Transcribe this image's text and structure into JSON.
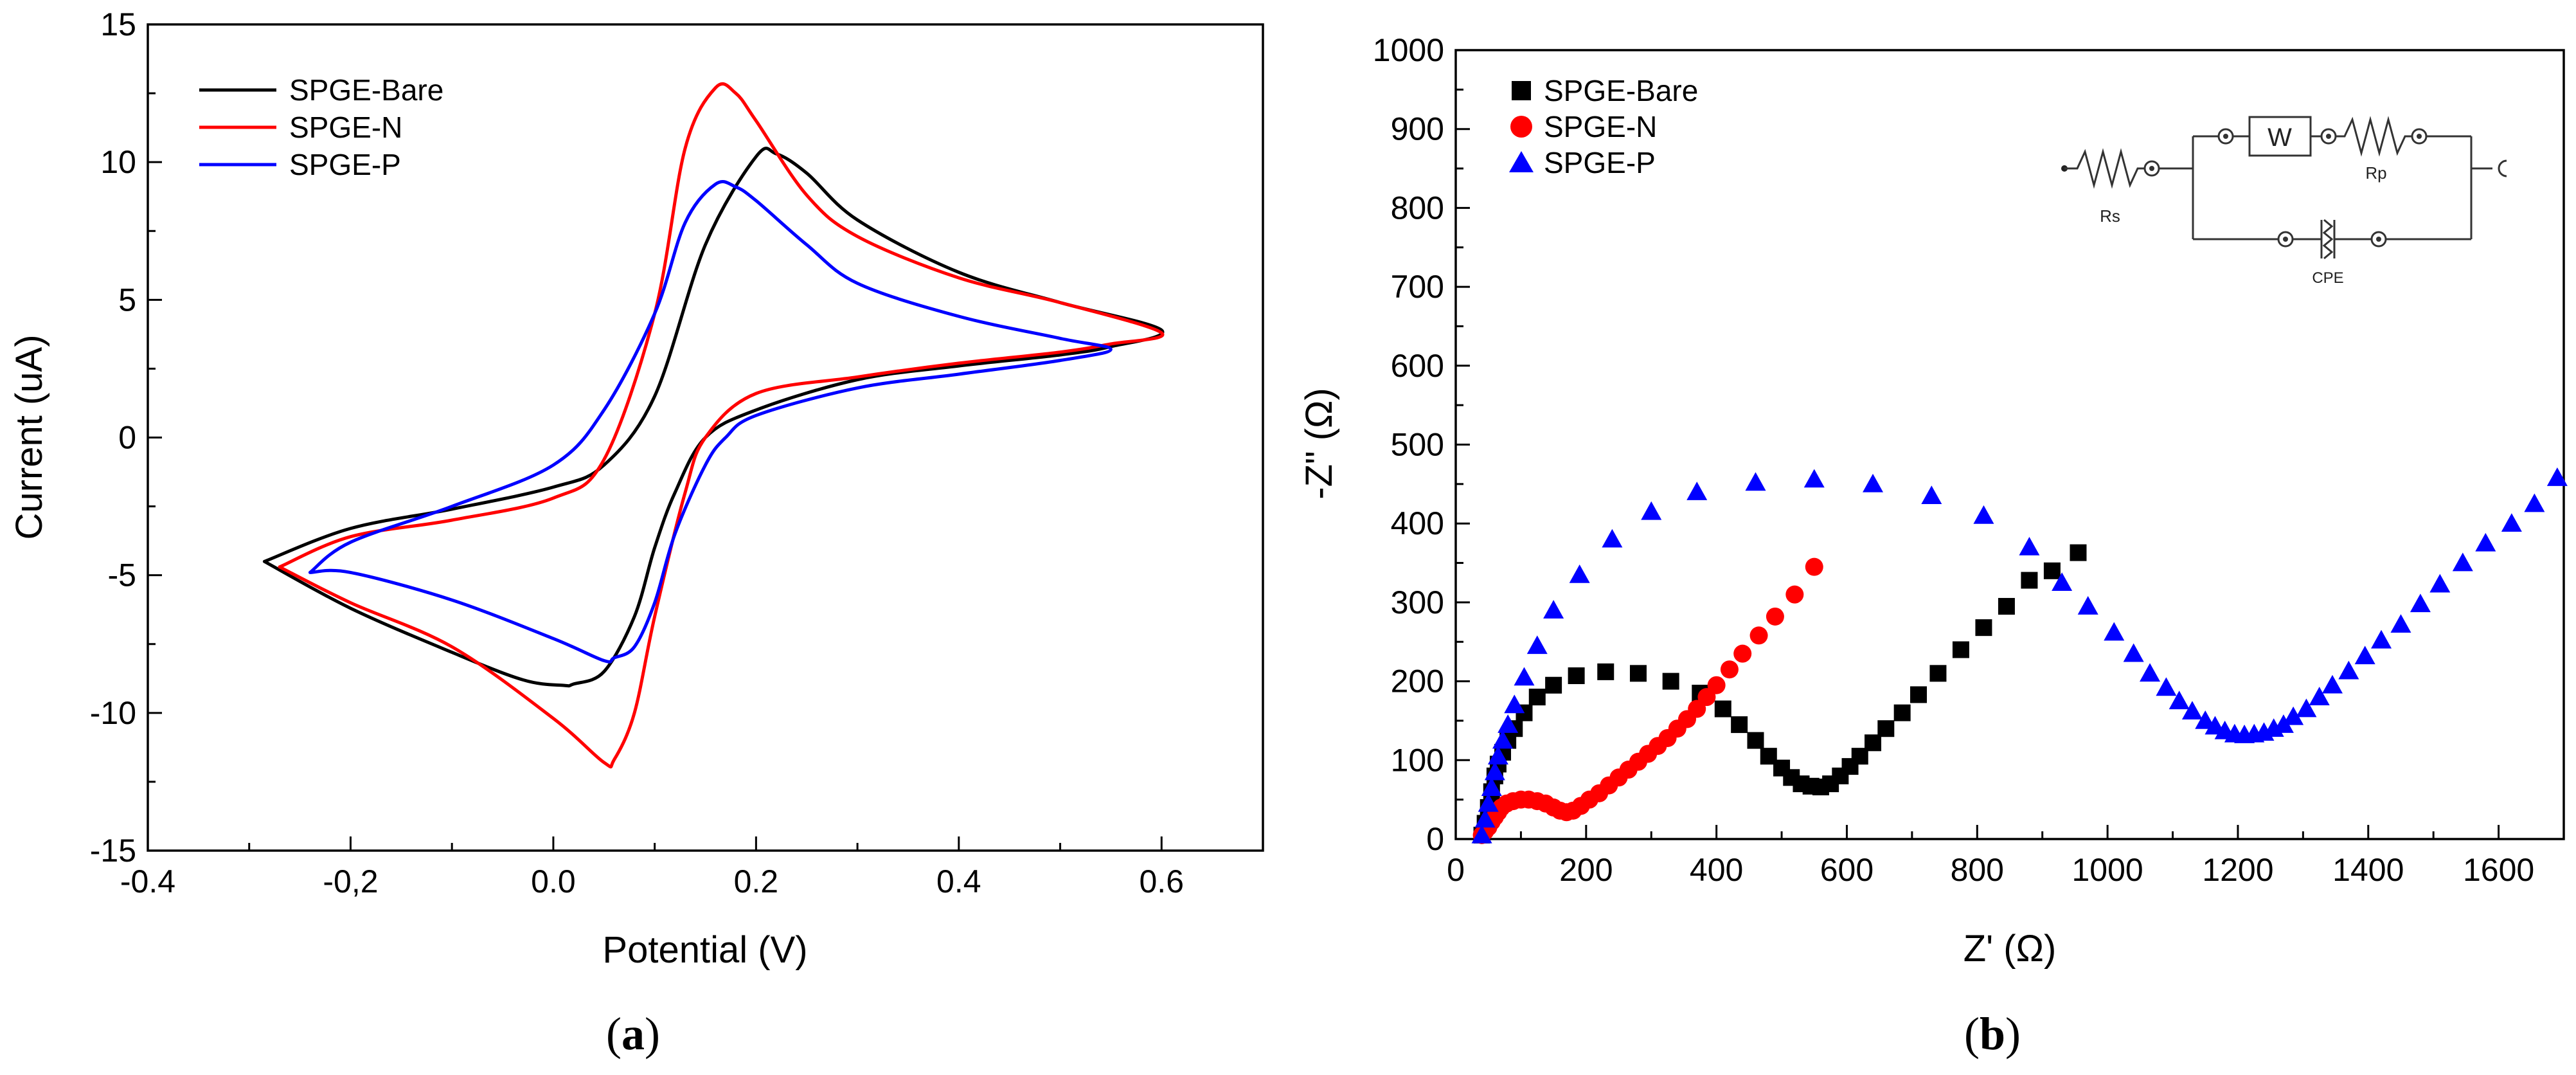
{
  "panels": {
    "a": {
      "label_letter": "a"
    },
    "b": {
      "label_letter": "b"
    }
  },
  "circuit": {
    "labels": {
      "rs": "Rs",
      "w": "W",
      "rp": "Rp",
      "cpe": "CPE"
    }
  },
  "chart_data": [
    {
      "id": "cv",
      "type": "line",
      "title": "",
      "xlabel": "Potential (V)",
      "ylabel": "Current (uA)",
      "xlim": [
        -0.4,
        0.7
      ],
      "ylim": [
        -15,
        15
      ],
      "xticks": [
        -0.4,
        -0.2,
        0.0,
        0.2,
        0.4,
        0.6
      ],
      "xtick_labels": [
        "-0.4",
        "-0,2",
        "0.0",
        "0.2",
        "0.4",
        "0.6"
      ],
      "yticks": [
        -15,
        -10,
        -5,
        0,
        5,
        10,
        15
      ],
      "ytick_labels": [
        "-15",
        "-10",
        "-5",
        "0",
        "5",
        "10",
        "15"
      ],
      "legend_position": "top-left",
      "grid": false,
      "series": [
        {
          "name": "SPGE-Bare",
          "color": "#000000",
          "x": [
            -0.285,
            -0.2,
            -0.1,
            0.0,
            0.05,
            0.1,
            0.15,
            0.2,
            0.22,
            0.25,
            0.3,
            0.4,
            0.5,
            0.6,
            0.55,
            0.5,
            0.4,
            0.3,
            0.2,
            0.15,
            0.12,
            0.1,
            0.08,
            0.05,
            0.02,
            0.01,
            -0.03,
            -0.1,
            -0.2,
            -0.285
          ],
          "y": [
            -4.5,
            -3.3,
            -2.6,
            -1.8,
            -1.0,
            1.5,
            7.0,
            10.2,
            10.3,
            9.6,
            7.9,
            6.0,
            4.9,
            3.9,
            3.3,
            3.0,
            2.6,
            2.1,
            1.0,
            0.0,
            -2.0,
            -4.0,
            -6.5,
            -8.5,
            -8.95,
            -9.0,
            -8.8,
            -7.8,
            -6.2,
            -4.5
          ]
        },
        {
          "name": "SPGE-N",
          "color": "#ff0000",
          "x": [
            -0.27,
            -0.2,
            -0.1,
            0.0,
            0.05,
            0.1,
            0.13,
            0.16,
            0.18,
            0.2,
            0.25,
            0.3,
            0.4,
            0.5,
            0.6,
            0.55,
            0.5,
            0.4,
            0.3,
            0.2,
            0.15,
            0.13,
            0.1,
            0.08,
            0.06,
            0.05,
            0.0,
            -0.1,
            -0.2,
            -0.27
          ],
          "y": [
            -4.7,
            -3.6,
            -3.0,
            -2.2,
            -0.8,
            4.5,
            10.5,
            12.7,
            12.5,
            11.5,
            8.8,
            7.3,
            5.8,
            4.9,
            3.8,
            3.4,
            3.1,
            2.7,
            2.2,
            1.6,
            0.0,
            -2.0,
            -6.5,
            -10.0,
            -11.7,
            -11.8,
            -10.2,
            -7.6,
            -6.0,
            -4.7
          ]
        },
        {
          "name": "SPGE-P",
          "color": "#0000ff",
          "x": [
            -0.24,
            -0.2,
            -0.1,
            0.0,
            0.05,
            0.1,
            0.13,
            0.16,
            0.18,
            0.2,
            0.25,
            0.3,
            0.4,
            0.5,
            0.55,
            0.5,
            0.4,
            0.3,
            0.2,
            0.17,
            0.15,
            0.12,
            0.1,
            0.08,
            0.06,
            0.05,
            0.0,
            -0.1,
            -0.2,
            -0.24
          ],
          "y": [
            -4.9,
            -3.8,
            -2.5,
            -1.0,
            1.0,
            4.5,
            7.8,
            9.2,
            9.1,
            8.6,
            7.0,
            5.6,
            4.4,
            3.6,
            3.2,
            2.8,
            2.3,
            1.8,
            0.8,
            0.0,
            -1.0,
            -3.5,
            -6.0,
            -7.6,
            -8.0,
            -8.1,
            -7.3,
            -5.9,
            -4.9,
            -4.9
          ]
        }
      ]
    },
    {
      "id": "nyquist",
      "type": "scatter",
      "title": "",
      "xlabel": "Z' (Ω)",
      "ylabel": "-Z\" (Ω)",
      "xlim": [
        0,
        1700
      ],
      "ylim": [
        0,
        1000
      ],
      "xticks": [
        0,
        200,
        400,
        600,
        800,
        1000,
        1200,
        1400,
        1600
      ],
      "xtick_labels": [
        "0",
        "200",
        "400",
        "600",
        "800",
        "1000",
        "1200",
        "1400",
        "1600"
      ],
      "yticks": [
        0,
        100,
        200,
        300,
        400,
        500,
        600,
        700,
        800,
        900,
        1000
      ],
      "ytick_labels": [
        "0",
        "100",
        "200",
        "300",
        "400",
        "500",
        "600",
        "700",
        "800",
        "900",
        "1000"
      ],
      "legend_position": "top-left",
      "grid": false,
      "series": [
        {
          "name": "SPGE-Bare",
          "color": "#000000",
          "marker": "square",
          "x": [
            40,
            45,
            50,
            55,
            60,
            65,
            72,
            80,
            90,
            105,
            125,
            150,
            185,
            230,
            280,
            330,
            375,
            410,
            435,
            460,
            480,
            500,
            515,
            530,
            545,
            560,
            575,
            590,
            605,
            620,
            640,
            660,
            685,
            710,
            740,
            775,
            810,
            845,
            880,
            915,
            955
          ],
          "y": [
            5,
            20,
            40,
            60,
            80,
            95,
            110,
            125,
            140,
            160,
            180,
            195,
            207,
            212,
            210,
            200,
            185,
            165,
            145,
            125,
            105,
            90,
            78,
            70,
            67,
            66,
            70,
            80,
            92,
            105,
            122,
            140,
            160,
            183,
            210,
            240,
            268,
            295,
            328,
            340,
            363
          ]
        },
        {
          "name": "SPGE-N",
          "color": "#ff0000",
          "marker": "circle",
          "x": [
            40,
            45,
            50,
            55,
            60,
            65,
            70,
            78,
            88,
            100,
            112,
            125,
            138,
            150,
            160,
            170,
            180,
            192,
            205,
            220,
            235,
            250,
            265,
            280,
            295,
            310,
            325,
            340,
            355,
            370,
            385,
            400,
            420,
            440,
            465,
            490,
            520,
            550
          ],
          "y": [
            5,
            10,
            15,
            22,
            28,
            34,
            40,
            45,
            48,
            50,
            50,
            48,
            45,
            40,
            36,
            34,
            36,
            42,
            50,
            58,
            68,
            78,
            88,
            98,
            108,
            118,
            128,
            140,
            152,
            165,
            180,
            195,
            215,
            235,
            258,
            282,
            310,
            345
          ]
        },
        {
          "name": "SPGE-P",
          "color": "#0000ff",
          "marker": "triangle",
          "x": [
            40,
            45,
            50,
            55,
            60,
            65,
            72,
            80,
            90,
            105,
            125,
            150,
            190,
            240,
            300,
            370,
            460,
            550,
            640,
            730,
            810,
            880,
            930,
            970,
            1010,
            1040,
            1065,
            1090,
            1110,
            1130,
            1150,
            1165,
            1180,
            1195,
            1210,
            1225,
            1240,
            1255,
            1270,
            1285,
            1305,
            1325,
            1345,
            1370,
            1395,
            1420,
            1450,
            1480,
            1510,
            1545,
            1580,
            1620,
            1655,
            1690
          ],
          "y": [
            5,
            25,
            45,
            65,
            85,
            105,
            125,
            145,
            170,
            205,
            245,
            290,
            335,
            380,
            415,
            440,
            452,
            456,
            450,
            435,
            410,
            370,
            325,
            295,
            262,
            235,
            210,
            192,
            175,
            162,
            150,
            143,
            137,
            133,
            132,
            133,
            135,
            140,
            145,
            155,
            165,
            180,
            195,
            213,
            232,
            252,
            272,
            298,
            323,
            350,
            375,
            400,
            425,
            458
          ]
        }
      ]
    }
  ]
}
